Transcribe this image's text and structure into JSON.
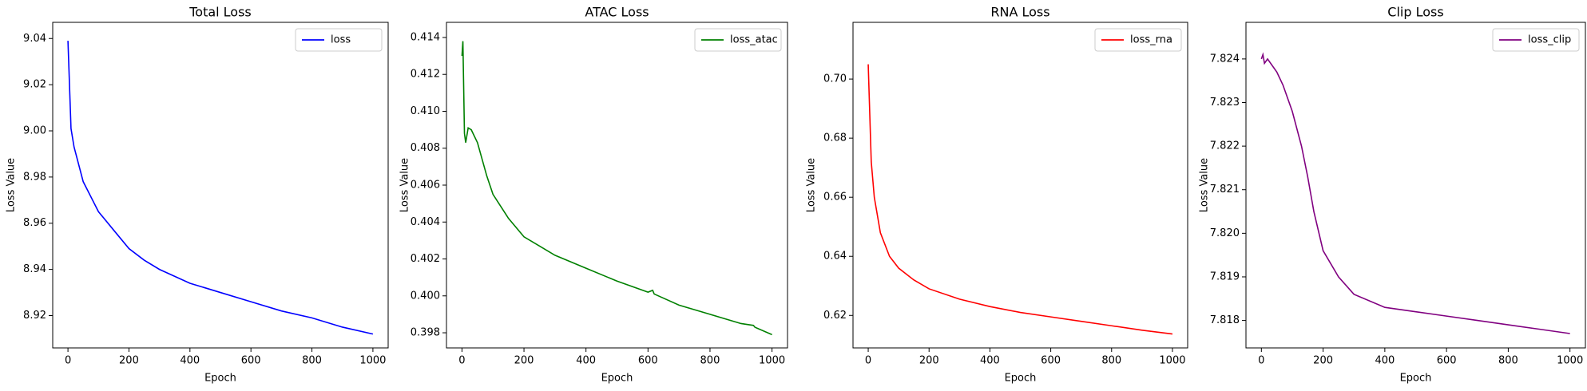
{
  "chart_data": [
    {
      "type": "line",
      "title": "Total Loss",
      "x_label": "Epoch",
      "y_label": "Loss Value",
      "legend": "upper right",
      "x": [
        0,
        5,
        10,
        20,
        50,
        100,
        150,
        200,
        250,
        300,
        400,
        500,
        600,
        700,
        800,
        900,
        1000
      ],
      "series": [
        {
          "name": "loss",
          "color": "#0000ff",
          "values": [
            9.039,
            9.02,
            9.001,
            8.993,
            8.978,
            8.965,
            8.957,
            8.949,
            8.944,
            8.94,
            8.934,
            8.93,
            8.926,
            8.922,
            8.919,
            8.915,
            8.912
          ]
        }
      ],
      "xlim": [
        -50,
        1050
      ],
      "xticks": [
        0,
        200,
        400,
        600,
        800,
        1000
      ],
      "ylim": [
        8.906,
        9.047
      ],
      "yticks": [
        8.92,
        8.94,
        8.96,
        8.98,
        {
          "value": 9.0,
          "label": "9.00"
        },
        9.02,
        9.04
      ]
    },
    {
      "type": "line",
      "title": "ATAC Loss",
      "x_label": "Epoch",
      "y_label": "Loss Value",
      "legend": "upper right",
      "x": [
        0,
        3,
        8,
        12,
        20,
        30,
        50,
        80,
        100,
        150,
        200,
        250,
        300,
        400,
        500,
        600,
        615,
        620,
        700,
        800,
        900,
        940,
        945,
        1000
      ],
      "series": [
        {
          "name": "loss_atac",
          "color": "#008000",
          "values": [
            0.413,
            0.4138,
            0.4088,
            0.4083,
            0.4091,
            0.409,
            0.4083,
            0.4065,
            0.4055,
            0.4042,
            0.4032,
            0.4027,
            0.4022,
            0.4015,
            0.4008,
            0.4002,
            0.4003,
            0.4001,
            0.3995,
            0.399,
            0.3985,
            0.3984,
            0.3983,
            0.3979
          ]
        }
      ],
      "xlim": [
        -50,
        1050
      ],
      "xticks": [
        0,
        200,
        400,
        600,
        800,
        1000
      ],
      "ylim": [
        0.39718,
        0.41482
      ],
      "yticks": [
        0.398,
        {
          "value": 0.4,
          "label": "0.400"
        },
        0.402,
        0.404,
        0.406,
        0.408,
        {
          "value": 0.41,
          "label": "0.410"
        },
        0.412,
        0.414
      ]
    },
    {
      "type": "line",
      "title": "RNA Loss",
      "x_label": "Epoch",
      "y_label": "Loss Value",
      "legend": "upper right",
      "x": [
        0,
        10,
        20,
        40,
        70,
        100,
        150,
        200,
        300,
        400,
        500,
        600,
        700,
        800,
        900,
        1000
      ],
      "series": [
        {
          "name": "loss_rna",
          "color": "#ff0000",
          "values": [
            0.705,
            0.672,
            0.66,
            0.648,
            0.64,
            0.636,
            0.632,
            0.629,
            0.6255,
            0.623,
            0.621,
            0.6195,
            0.618,
            0.6165,
            0.615,
            0.6137
          ]
        }
      ],
      "xlim": [
        -50,
        1050
      ],
      "xticks": [
        0,
        200,
        400,
        600,
        800,
        1000
      ],
      "ylim": [
        0.609,
        0.7192
      ],
      "yticks": [
        0.62,
        0.64,
        0.66,
        0.68,
        {
          "value": 0.7,
          "label": "0.70"
        }
      ]
    },
    {
      "type": "line",
      "title": "Clip Loss",
      "x_label": "Epoch",
      "y_label": "Loss Value",
      "legend": "upper right",
      "x": [
        0,
        5,
        10,
        20,
        50,
        70,
        100,
        130,
        150,
        170,
        200,
        250,
        300,
        400,
        500,
        600,
        700,
        800,
        900,
        1000
      ],
      "series": [
        {
          "name": "loss_clip",
          "color": "#800080",
          "values": [
            7.824,
            7.8241,
            7.8239,
            7.824,
            7.8237,
            7.8234,
            7.8228,
            7.822,
            7.8213,
            7.8205,
            7.8196,
            7.819,
            7.8186,
            7.8183,
            7.8182,
            7.8181,
            7.818,
            7.8179,
            7.8178,
            7.8177
          ]
        }
      ],
      "xlim": [
        -50,
        1050
      ],
      "xticks": [
        0,
        200,
        400,
        600,
        800,
        1000
      ],
      "ylim": [
        7.81737,
        7.82484
      ],
      "yticks": [
        7.818,
        7.819,
        {
          "value": 7.82,
          "label": "7.820"
        },
        7.821,
        7.822,
        7.823,
        7.824
      ]
    }
  ]
}
